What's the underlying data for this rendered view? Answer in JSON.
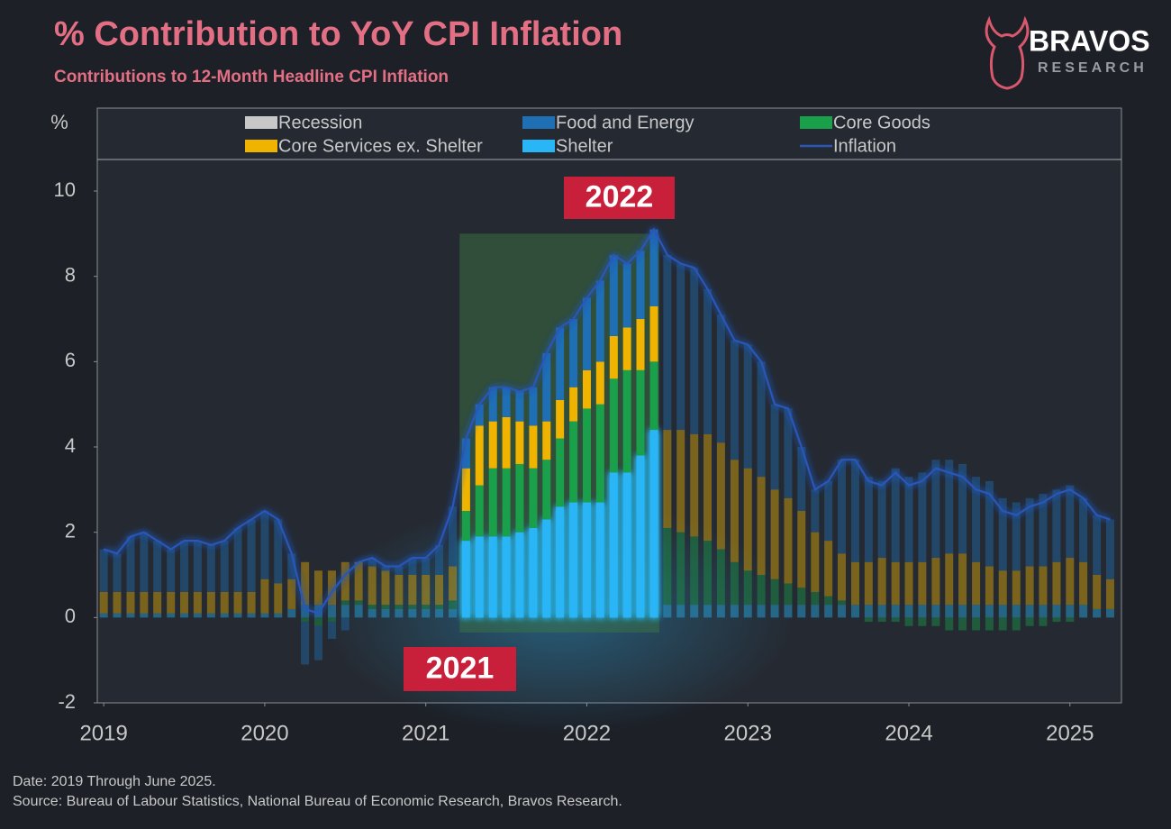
{
  "header": {
    "brand": "BRAVOS",
    "tagline": "RESEARCH"
  },
  "chart_data": {
    "type": "bar",
    "stacked": true,
    "title": "% Contribution to YoY CPI Inflation",
    "subtitle": "Contributions to 12-Month Headline CPI Inflation",
    "ylabel": "%",
    "x": [
      2019,
      2019.083,
      2019.167,
      2019.25,
      2019.333,
      2019.417,
      2019.5,
      2019.583,
      2019.667,
      2019.75,
      2019.833,
      2019.917,
      2020,
      2020.083,
      2020.167,
      2020.25,
      2020.333,
      2020.417,
      2020.5,
      2020.583,
      2020.667,
      2020.75,
      2020.833,
      2020.917,
      2021,
      2021.083,
      2021.167,
      2021.25,
      2021.333,
      2021.417,
      2021.5,
      2021.583,
      2021.667,
      2021.75,
      2021.833,
      2021.917,
      2022,
      2022.083,
      2022.167,
      2022.25,
      2022.333,
      2022.417,
      2022.5,
      2022.583,
      2022.667,
      2022.75,
      2022.833,
      2022.917,
      2023,
      2023.083,
      2023.167,
      2023.25,
      2023.333,
      2023.417,
      2023.5,
      2023.583,
      2023.667,
      2023.75,
      2023.833,
      2023.917,
      2024,
      2024.083,
      2024.167,
      2024.25,
      2024.333,
      2024.417,
      2024.5,
      2024.583,
      2024.667,
      2024.75,
      2024.833,
      2024.917,
      2025,
      2025.083,
      2025.167,
      2025.25
    ],
    "xlim": [
      2018.96,
      2025.32
    ],
    "xticks": [
      2019,
      2020,
      2021,
      2022,
      2023,
      2024,
      2025
    ],
    "ylim": [
      -2,
      10.74
    ],
    "yticks": [
      -2,
      0,
      2,
      4,
      6,
      8,
      10
    ],
    "recession": {
      "name": "Recession",
      "color": "#c8c8c8"
    },
    "series": [
      {
        "name": "Food and Energy",
        "color": "#1f6fb5",
        "values": [
          1.0,
          0.9,
          1.3,
          1.4,
          1.2,
          1.0,
          1.2,
          1.2,
          1.1,
          1.2,
          1.5,
          1.7,
          1.6,
          1.5,
          0.6,
          -1.0,
          -0.8,
          -0.4,
          -0.3,
          0.0,
          0.2,
          0.1,
          0.2,
          0.4,
          0.4,
          0.7,
          1.4,
          0.7,
          0.5,
          0.8,
          0.7,
          0.7,
          0.9,
          1.6,
          1.7,
          1.6,
          1.7,
          1.9,
          1.9,
          1.5,
          1.6,
          1.8,
          4.1,
          3.9,
          3.9,
          3.4,
          3.0,
          2.8,
          2.9,
          2.7,
          2.0,
          2.1,
          1.5,
          1.0,
          1.4,
          2.2,
          2.4,
          2.0,
          1.8,
          2.2,
          2.0,
          2.1,
          2.3,
          2.2,
          2.1,
          2.0,
          2.0,
          1.7,
          1.6,
          1.6,
          1.7,
          1.7,
          1.7,
          1.5,
          1.4,
          1.4
        ]
      },
      {
        "name": "Core Goods",
        "color": "#1aa04a",
        "values": [
          0,
          0,
          0,
          0,
          0,
          0,
          0,
          0,
          0,
          0,
          0,
          0,
          0,
          0,
          0,
          -0.1,
          -0.2,
          -0.1,
          0.1,
          0.1,
          0.1,
          0.1,
          0.1,
          0.1,
          0.1,
          0.1,
          0.2,
          0.7,
          1.2,
          1.6,
          1.6,
          1.6,
          1.4,
          1.4,
          1.6,
          1.9,
          2.2,
          2.3,
          2.2,
          2.4,
          2.0,
          1.6,
          1.8,
          1.7,
          1.6,
          1.5,
          1.3,
          1.0,
          0.8,
          0.7,
          0.6,
          0.5,
          0.4,
          0.3,
          0.2,
          0.1,
          0,
          -0.1,
          -0.1,
          -0.1,
          -0.2,
          -0.2,
          -0.2,
          -0.3,
          -0.3,
          -0.3,
          -0.3,
          -0.3,
          -0.3,
          -0.2,
          -0.2,
          -0.1,
          -0.1,
          0,
          0,
          0
        ]
      },
      {
        "name": "Core Services ex. Shelter",
        "color": "#f0b400",
        "values": [
          0.5,
          0.5,
          0.5,
          0.5,
          0.5,
          0.5,
          0.5,
          0.5,
          0.5,
          0.5,
          0.5,
          0.5,
          0.8,
          0.7,
          0.7,
          1.0,
          0.8,
          0.8,
          0.9,
          0.9,
          0.9,
          0.8,
          0.7,
          0.7,
          0.7,
          0.7,
          0.8,
          1.0,
          1.4,
          1.1,
          1.2,
          1.0,
          1.0,
          0.9,
          0.9,
          0.8,
          0.9,
          1.0,
          1.0,
          1.0,
          1.2,
          1.3,
          2.3,
          2.4,
          2.4,
          2.5,
          2.5,
          2.4,
          2.4,
          2.3,
          2.1,
          2.0,
          1.8,
          1.4,
          1.3,
          1.1,
          1.0,
          1.0,
          1.1,
          1.0,
          1.0,
          1.0,
          1.1,
          1.2,
          1.2,
          1.0,
          0.9,
          0.8,
          0.8,
          0.9,
          0.9,
          1.0,
          1.1,
          1.0,
          0.8,
          0.7
        ]
      },
      {
        "name": "Shelter",
        "color": "#29b6f6",
        "values": [
          0.1,
          0.1,
          0.1,
          0.1,
          0.1,
          0.1,
          0.1,
          0.1,
          0.1,
          0.1,
          0.1,
          0.1,
          0.1,
          0.1,
          0.2,
          0.3,
          0.3,
          0.3,
          0.3,
          0.3,
          0.2,
          0.2,
          0.2,
          0.2,
          0.2,
          0.2,
          0.2,
          1.8,
          1.9,
          1.9,
          1.9,
          2.0,
          2.1,
          2.3,
          2.6,
          2.7,
          2.7,
          2.7,
          3.4,
          3.4,
          3.8,
          4.4,
          0.3,
          0.3,
          0.3,
          0.3,
          0.3,
          0.3,
          0.3,
          0.3,
          0.3,
          0.3,
          0.3,
          0.3,
          0.3,
          0.3,
          0.3,
          0.3,
          0.3,
          0.3,
          0.3,
          0.3,
          0.3,
          0.3,
          0.3,
          0.3,
          0.3,
          0.3,
          0.3,
          0.3,
          0.3,
          0.3,
          0.3,
          0.3,
          0.2,
          0.2
        ]
      },
      {
        "name": "Inflation",
        "type": "line",
        "color": "#2a57b8",
        "values": [
          1.6,
          1.5,
          1.9,
          2.0,
          1.8,
          1.6,
          1.8,
          1.8,
          1.7,
          1.8,
          2.1,
          2.3,
          2.5,
          2.3,
          1.5,
          0.2,
          0.1,
          0.6,
          1.0,
          1.3,
          1.4,
          1.2,
          1.2,
          1.4,
          1.4,
          1.7,
          2.6,
          4.2,
          5.0,
          5.4,
          5.4,
          5.3,
          5.4,
          6.2,
          6.8,
          7.0,
          7.5,
          7.9,
          8.5,
          8.3,
          8.6,
          9.1,
          8.5,
          8.3,
          8.2,
          7.7,
          7.1,
          6.5,
          6.4,
          6.0,
          5.0,
          4.9,
          4.0,
          3.0,
          3.2,
          3.7,
          3.7,
          3.2,
          3.1,
          3.4,
          3.1,
          3.2,
          3.5,
          3.4,
          3.3,
          3.0,
          2.9,
          2.5,
          2.4,
          2.6,
          2.7,
          2.9,
          3.0,
          2.8,
          2.4,
          2.3
        ]
      }
    ],
    "highlight": {
      "x": [
        2021.21,
        2022.45
      ],
      "y": [
        -0.35,
        9.0
      ]
    },
    "annotations": [
      "2022",
      "2021"
    ]
  },
  "footer": {
    "date": "Date: 2019 Through June 2025.",
    "source": "Source: Bureau of Labour Statistics, National Bureau of Economic Research, Bravos Research."
  }
}
